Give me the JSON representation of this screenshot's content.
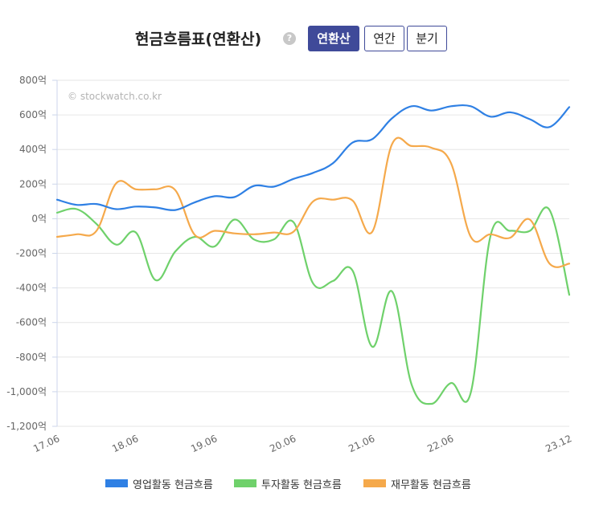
{
  "header": {
    "title": "현금흐름표(연환산)",
    "help_glyph": "?",
    "buttons": [
      {
        "label": "연환산",
        "active": true
      },
      {
        "label": "연간",
        "active": false
      },
      {
        "label": "분기",
        "active": false
      }
    ]
  },
  "watermark": "© stockwatch.co.kr",
  "colors": {
    "operating": "#2f80e4",
    "investing": "#6fd16b",
    "financing": "#f5a94b",
    "accent": "#3f4a99"
  },
  "chart_data": {
    "type": "line",
    "ylim": [
      -1200,
      800
    ],
    "yticks": [
      800,
      600,
      400,
      200,
      0,
      -200,
      -400,
      -600,
      -800,
      -1000,
      -1200
    ],
    "ytick_labels": [
      "800억",
      "600억",
      "400억",
      "200억",
      "0억",
      "-200억",
      "-400억",
      "-600억",
      "-800억",
      "-1,000억",
      "-1,200억"
    ],
    "x_tick_labels": [
      "17.06",
      "18.06",
      "19.06",
      "20.06",
      "21.06",
      "22.06",
      "23.12"
    ],
    "x_tick_positions": [
      0,
      4,
      8,
      12,
      16,
      20,
      26
    ],
    "x": [
      "17.06",
      "17.09",
      "17.12",
      "18.03",
      "18.06",
      "18.09",
      "18.12",
      "19.03",
      "19.06",
      "19.09",
      "19.12",
      "20.03",
      "20.06",
      "20.09",
      "20.12",
      "21.03",
      "21.06",
      "21.09",
      "21.12",
      "22.03",
      "22.06",
      "22.09",
      "22.12",
      "23.03",
      "23.06",
      "23.09",
      "23.12"
    ],
    "grid": true,
    "legend_position": "bottom",
    "series": [
      {
        "name": "영업활동 현금흐름",
        "color_key": "operating",
        "values": [
          110,
          80,
          85,
          55,
          70,
          65,
          50,
          95,
          130,
          125,
          190,
          185,
          230,
          265,
          320,
          440,
          460,
          580,
          650,
          625,
          650,
          650,
          590,
          615,
          575,
          530,
          645
        ]
      },
      {
        "name": "투자활동 현금흐름",
        "color_key": "investing",
        "values": [
          35,
          55,
          -30,
          -150,
          -80,
          -355,
          -190,
          -105,
          -160,
          -5,
          -120,
          -120,
          -20,
          -375,
          -360,
          -300,
          -740,
          -420,
          -960,
          -1070,
          -950,
          -1005,
          -100,
          -70,
          -70,
          50,
          -440
        ]
      },
      {
        "name": "재무활동 현금흐름",
        "color_key": "financing",
        "values": [
          -105,
          -90,
          -70,
          205,
          170,
          170,
          165,
          -95,
          -70,
          -85,
          -90,
          -80,
          -75,
          100,
          110,
          105,
          -75,
          430,
          420,
          410,
          320,
          -105,
          -90,
          -110,
          -5,
          -260,
          -260
        ]
      }
    ]
  }
}
